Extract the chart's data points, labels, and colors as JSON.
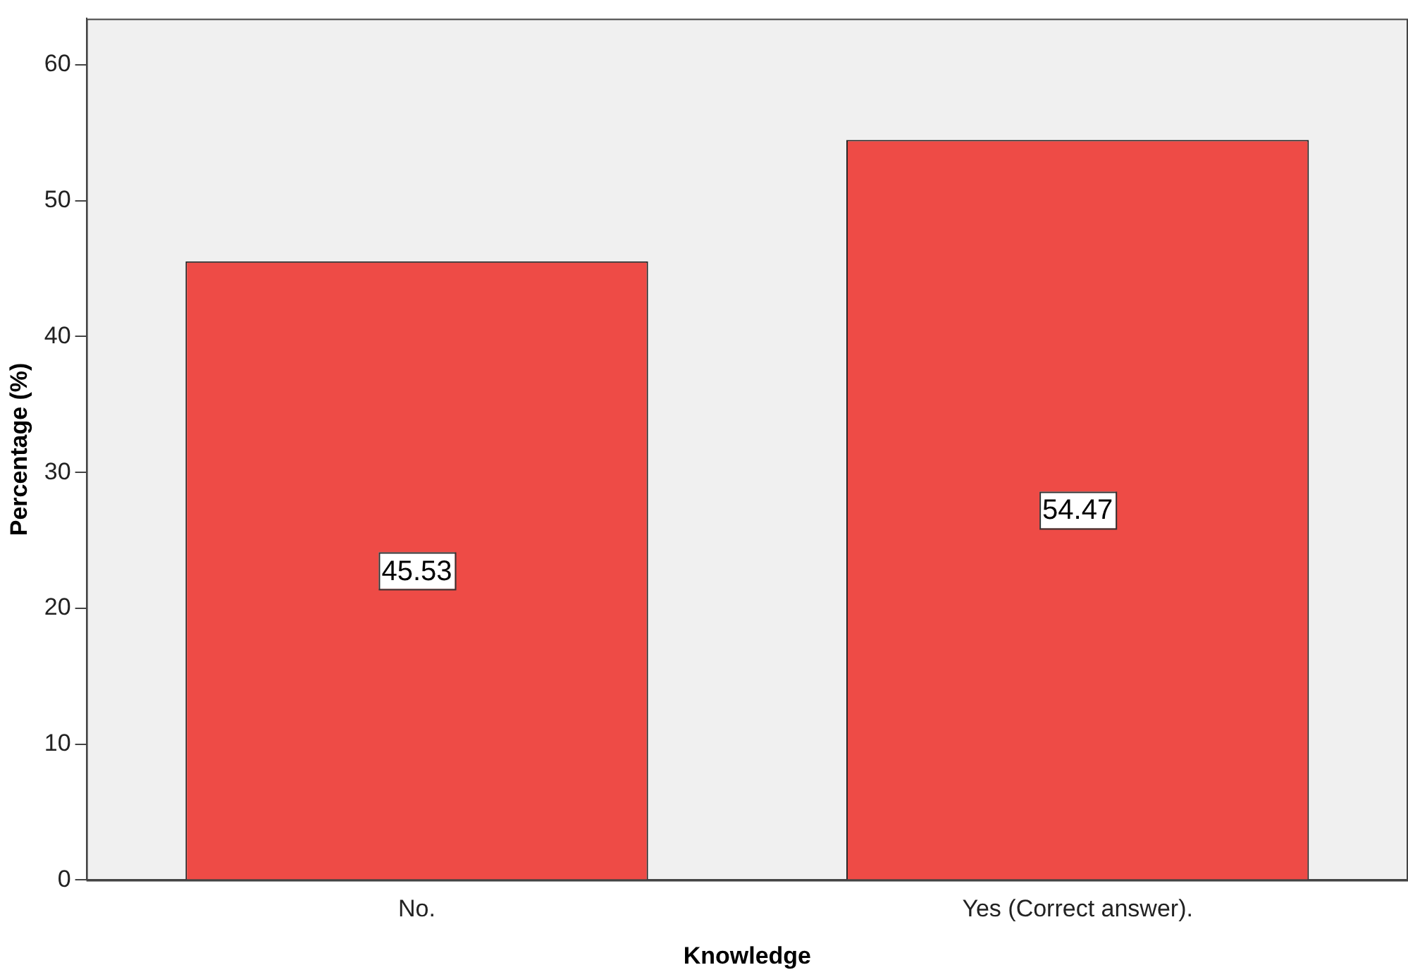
{
  "chart_data": {
    "type": "bar",
    "xlabel": "Knowledge",
    "ylabel": "Percentage (%)",
    "categories": [
      "No.",
      "Yes (Correct answer)."
    ],
    "values": [
      45.53,
      54.47
    ],
    "color": "#ee4b46",
    "ylim": [
      0,
      63.4
    ],
    "yticks": [
      0,
      10,
      20,
      30,
      40,
      50,
      60
    ],
    "grid": false,
    "legend": false,
    "data_labels": true
  }
}
